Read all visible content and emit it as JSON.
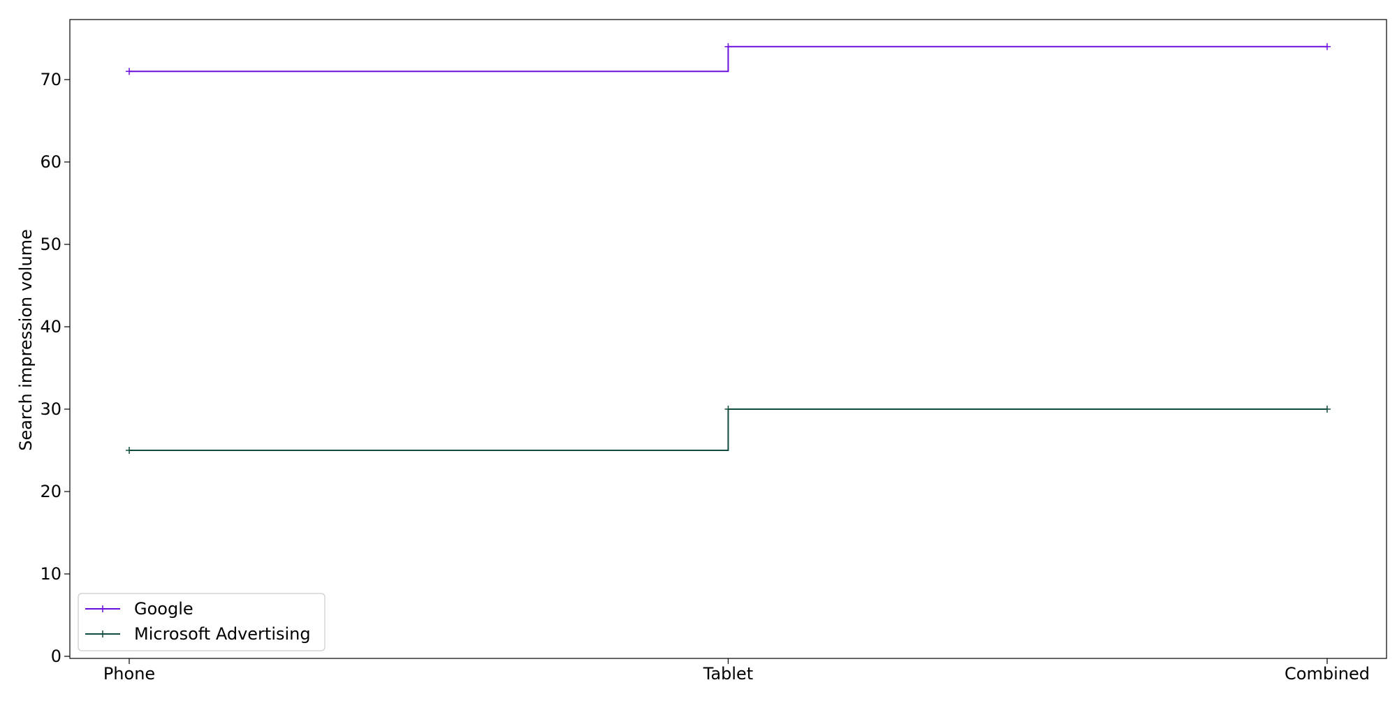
{
  "chart_data": {
    "type": "line",
    "drawstyle": "steps-post",
    "title": "",
    "xlabel": "",
    "ylabel": "Search impression volume",
    "categories": [
      "Phone",
      "Tablet",
      "Combined"
    ],
    "ylim": [
      0,
      77
    ],
    "yticks": [
      0,
      10,
      20,
      30,
      40,
      50,
      60,
      70
    ],
    "grid": false,
    "legend": {
      "placement": "lower-left"
    },
    "series": [
      {
        "name": "Google",
        "values": [
          71,
          74,
          74
        ],
        "color": "#6a0dde",
        "marker": "plus"
      },
      {
        "name": "Microsoft Advertising",
        "values": [
          25,
          30,
          30
        ],
        "color": "#0e4a3f",
        "marker": "plus"
      }
    ]
  }
}
